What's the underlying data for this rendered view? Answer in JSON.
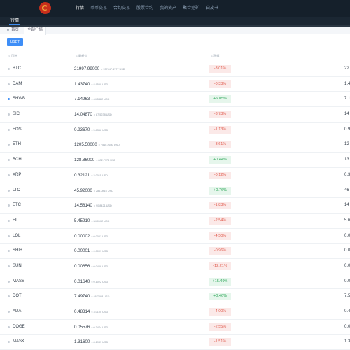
{
  "brand": {
    "logo_text": ""
  },
  "nav": {
    "items": [
      {
        "label": "行情",
        "active": true
      },
      {
        "label": "币币交易",
        "active": false
      },
      {
        "label": "合约交易",
        "active": false
      },
      {
        "label": "股票合约",
        "active": false
      },
      {
        "label": "我的资产",
        "active": false
      },
      {
        "label": "聚合挖矿",
        "active": false
      },
      {
        "label": "白皮书",
        "active": false
      }
    ]
  },
  "subbar": {
    "title": "行情"
  },
  "breadcrumb": {
    "home": "首页",
    "current": "全部行情"
  },
  "filter": {
    "usdt": "USDT"
  },
  "table": {
    "headers": {
      "name": "币种",
      "price": "最新价",
      "change": "涨幅"
    },
    "rows": [
      {
        "symbol": "BTC",
        "fav": false,
        "price": "21997.99000",
        "conv": "≈ 137047.4777 USD",
        "change": "-3.01%",
        "dir": "down",
        "cut": "22"
      },
      {
        "symbol": "DAM",
        "fav": false,
        "price": "1.43740",
        "conv": "≈ 8.9550 USD",
        "change": "-0.33%",
        "dir": "down",
        "cut": "1.4"
      },
      {
        "symbol": "SHWB",
        "fav": true,
        "price": "7.14963",
        "conv": "≈ 44.5422 USD",
        "change": "+6.05%",
        "dir": "up",
        "cut": "7.1"
      },
      {
        "symbol": "SIC",
        "fav": false,
        "price": "14.04870",
        "conv": "≈ 87.5238 USD",
        "change": "-3.73%",
        "dir": "down",
        "cut": "14"
      },
      {
        "symbol": "EOS",
        "fav": false,
        "price": "0.93670",
        "conv": "≈ 5.8356 USD",
        "change": "-1.13%",
        "dir": "down",
        "cut": "0.9"
      },
      {
        "symbol": "ETH",
        "fav": false,
        "price": "1205.50000",
        "conv": "≈ 7510.2650 USD",
        "change": "-3.61%",
        "dir": "down",
        "cut": "12"
      },
      {
        "symbol": "BCH",
        "fav": false,
        "price": "128.86000",
        "conv": "≈ 802.7978 USD",
        "change": "+0.44%",
        "dir": "up",
        "cut": "13"
      },
      {
        "symbol": "XRP",
        "fav": false,
        "price": "0.32121",
        "conv": "≈ 2.0011 USD",
        "change": "-0.12%",
        "dir": "down",
        "cut": "0.3"
      },
      {
        "symbol": "LTC",
        "fav": false,
        "price": "45.92000",
        "conv": "≈ 286.0816 USD",
        "change": "+0.76%",
        "dir": "up",
        "cut": "46"
      },
      {
        "symbol": "ETC",
        "fav": false,
        "price": "14.58140",
        "conv": "≈ 90.8421 USD",
        "change": "-1.83%",
        "dir": "down",
        "cut": "14"
      },
      {
        "symbol": "FIL",
        "fav": false,
        "price": "5.45910",
        "conv": "≈ 34.0102 USD",
        "change": "-2.54%",
        "dir": "down",
        "cut": "5.6"
      },
      {
        "symbol": "LOL",
        "fav": false,
        "price": "0.00002",
        "conv": "≈ 0.0001 USD",
        "change": "-4.50%",
        "dir": "down",
        "cut": "0.0"
      },
      {
        "symbol": "SHIB",
        "fav": false,
        "price": "0.00001",
        "conv": "≈ 0.0001 USD",
        "change": "-0.96%",
        "dir": "down",
        "cut": "0.0"
      },
      {
        "symbol": "SUN",
        "fav": false,
        "price": "0.00656",
        "conv": "≈ 0.0409 USD",
        "change": "-12.21%",
        "dir": "down",
        "cut": "0.0"
      },
      {
        "symbol": "MASS",
        "fav": false,
        "price": "0.01640",
        "conv": "≈ 0.1022 USD",
        "change": "+15.49%",
        "dir": "up",
        "cut": "0.0"
      },
      {
        "symbol": "DOT",
        "fav": false,
        "price": "7.49740",
        "conv": "≈ 46.7088 USD",
        "change": "+0.46%",
        "dir": "up",
        "cut": "7.5"
      },
      {
        "symbol": "ADA",
        "fav": false,
        "price": "0.48314",
        "conv": "≈ 3.0100 USD",
        "change": "-4.00%",
        "dir": "down",
        "cut": "0.4"
      },
      {
        "symbol": "DOGE",
        "fav": false,
        "price": "0.05576",
        "conv": "≈ 0.3474 USD",
        "change": "-2.55%",
        "dir": "down",
        "cut": "0.0"
      },
      {
        "symbol": "MASK",
        "fav": false,
        "price": "1.31600",
        "conv": "≈ 8.1987 USD",
        "change": "-1.51%",
        "dir": "down",
        "cut": "1.3"
      }
    ]
  },
  "colors": {
    "accent": "#3e8ef7",
    "up": "#2fa85a",
    "down": "#e05a4c",
    "nav_bg": "#15202b"
  }
}
